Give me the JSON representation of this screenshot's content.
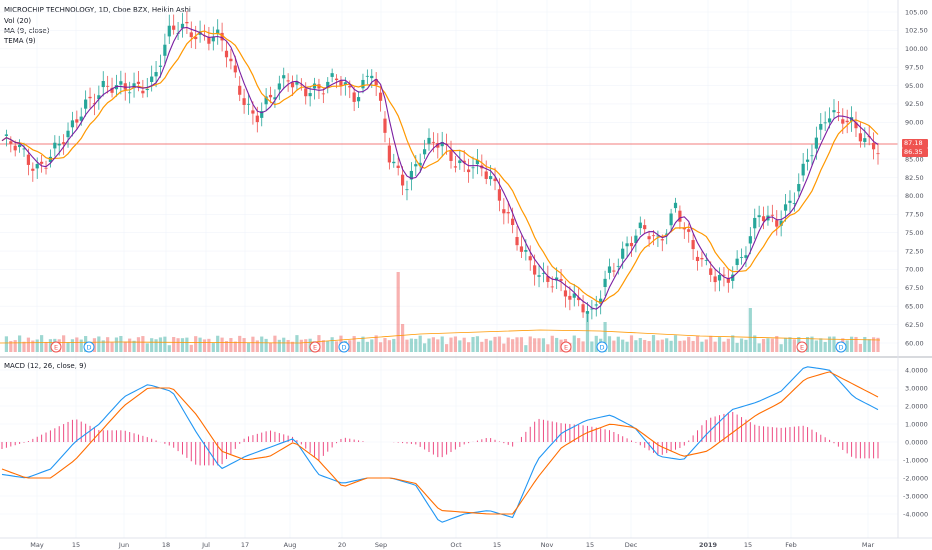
{
  "header": {
    "title": "MICROCHIP TECHNOLOGY, 1D, Cboe BZX, Heikin Ashi",
    "vol_label": "Vol (20)",
    "ma_label": "MA (9, close)",
    "tema_label": "TEMA (9)"
  },
  "macd_panel": {
    "label": "MACD (12, 26, close, 9)"
  },
  "price_tags": {
    "upper": "87.18",
    "lower": "86.35"
  },
  "event_markers": [
    "E",
    "D",
    "E",
    "D",
    "E",
    "D",
    "E",
    "D"
  ],
  "colors": {
    "up": "#26a69a",
    "down": "#ef5350",
    "ma": "#ff9800",
    "tema": "#7b1fa2",
    "macd": "#2196f3",
    "signal": "#ff6d00",
    "hist": "#e91e63",
    "price_line": "#ef5350"
  },
  "chart_data": [
    {
      "type": "candlestick",
      "title": "MICROCHIP TECHNOLOGY, 1D, Cboe BZX, Heikin Ashi",
      "x_tick_labels": [
        "May",
        "15",
        "Jun",
        "18",
        "Jul",
        "17",
        "Aug",
        "20",
        "Sep",
        "Oct",
        "15",
        "Nov",
        "15",
        "Dec",
        "2019",
        "15",
        "Feb",
        "Mar"
      ],
      "y_tick_labels": [
        "105.00",
        "102.50",
        "100.00",
        "97.50",
        "95.00",
        "92.50",
        "90.00",
        "87.18",
        "86.35",
        "85.00",
        "82.50",
        "80.00",
        "77.50",
        "75.00",
        "72.50",
        "70.00",
        "67.50",
        "65.00",
        "62.50",
        "60.00"
      ],
      "ylim": [
        59.5,
        106
      ],
      "last_price": 87.18,
      "close_approx": [
        87.5,
        86,
        84,
        86,
        88,
        93,
        95,
        94,
        95,
        96,
        102,
        103,
        102,
        101,
        95,
        91,
        93,
        96,
        95,
        94,
        96,
        94,
        97,
        85,
        82,
        86,
        87,
        85,
        84,
        82,
        78,
        72,
        68,
        69,
        66,
        63,
        70,
        73,
        75,
        74,
        79,
        72,
        70,
        69,
        71,
        78,
        77,
        79,
        86,
        92,
        90,
        88,
        87.18
      ],
      "series": [
        {
          "name": "MA (9, close)"
        },
        {
          "name": "TEMA (9)"
        },
        {
          "name": "Vol (20)"
        }
      ]
    },
    {
      "type": "line",
      "title": "MACD (12, 26, close, 9)",
      "y_tick_labels": [
        "4.0000",
        "3.0000",
        "2.0000",
        "1.0000",
        "0.0000",
        "-1.0000",
        "-2.0000",
        "-3.0000",
        "-4.0000"
      ],
      "ylim": [
        -5,
        4.5
      ],
      "macd_approx": [
        -1.8,
        -2.0,
        -1.5,
        0,
        1.0,
        2.5,
        3.2,
        2.8,
        0.5,
        -1.5,
        -0.8,
        -0.3,
        0.2,
        -1.8,
        -2.3,
        -2.0,
        -2.0,
        -2.4,
        -4.5,
        -4.0,
        -3.8,
        -4.2,
        -1.0,
        0.5,
        1.2,
        1.5,
        0.8,
        -0.8,
        -1.0,
        0.5,
        1.8,
        2.2,
        2.8,
        4.2,
        4.0,
        2.5,
        1.8
      ],
      "signal_approx": [
        -1.5,
        -2.0,
        -2.0,
        -1.0,
        0.5,
        2.0,
        3.0,
        3.0,
        1.5,
        -0.5,
        -1.0,
        -0.8,
        0,
        -1.0,
        -2.5,
        -2.0,
        -2.0,
        -2.3,
        -3.8,
        -3.9,
        -4.0,
        -4.0,
        -2.0,
        -0.3,
        0.5,
        1.0,
        0.8,
        -0.2,
        -0.8,
        -0.5,
        0.5,
        1.5,
        2.2,
        3.5,
        3.9,
        3.2,
        2.5
      ]
    }
  ]
}
